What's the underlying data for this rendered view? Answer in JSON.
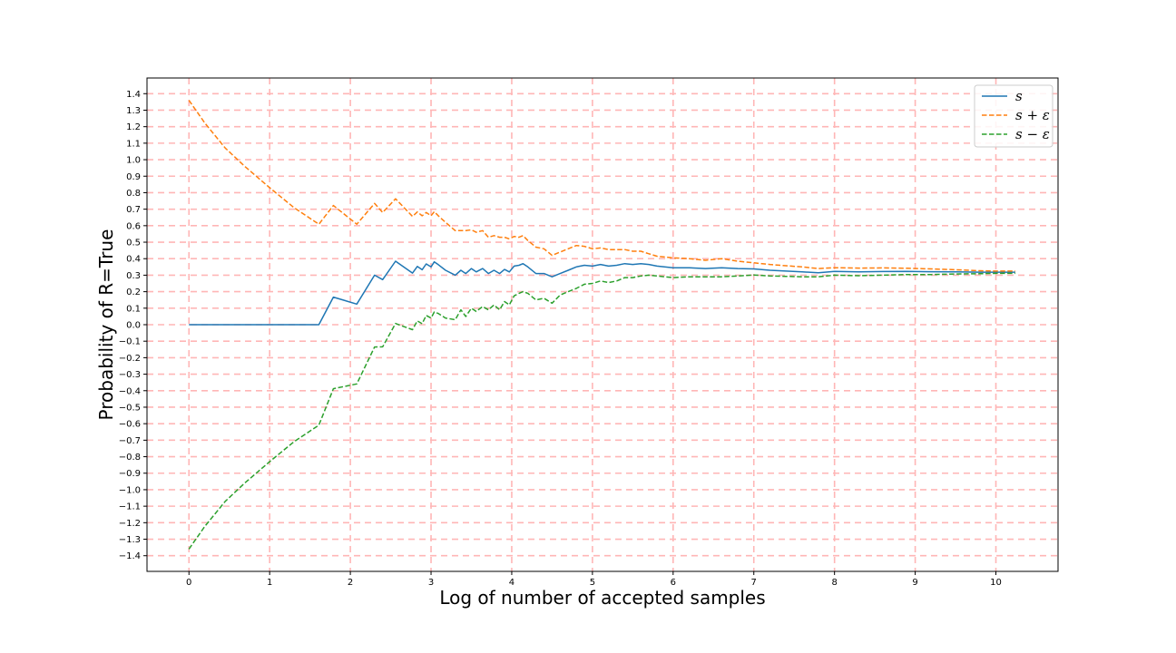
{
  "chart_data": {
    "type": "line",
    "xlabel": "Log of number of accepted samples",
    "ylabel": "Probability of R=True",
    "xlim": [
      -0.52,
      10.77
    ],
    "ylim": [
      -1.495,
      1.495
    ],
    "xticks": [
      0,
      1,
      2,
      3,
      4,
      5,
      6,
      7,
      8,
      9,
      10
    ],
    "xtick_labels": [
      "0",
      "1",
      "2",
      "3",
      "4",
      "5",
      "6",
      "7",
      "8",
      "9",
      "10"
    ],
    "yticks": [
      1.4,
      1.3,
      1.2,
      1.1,
      1.0,
      0.9,
      0.8,
      0.7,
      0.6,
      0.5,
      0.4,
      0.3,
      0.2,
      0.1,
      0.0,
      -0.1,
      -0.2,
      -0.3,
      -0.4,
      -0.5,
      -0.6,
      -0.7,
      -0.8,
      -0.9,
      -1.0,
      -1.1,
      -1.2,
      -1.3,
      -1.4
    ],
    "ytick_labels": [
      "1.4",
      "1.3",
      "1.2",
      "1.1",
      "1.0",
      "0.9",
      "0.8",
      "0.7",
      "0.6",
      "0.5",
      "0.4",
      "0.3",
      "0.2",
      "0.1",
      "0.0",
      "−0.1",
      "−0.2",
      "−0.3",
      "−0.4",
      "−0.5",
      "−0.6",
      "−0.7",
      "−0.8",
      "−0.9",
      "−1.0",
      "−1.1",
      "−1.2",
      "−1.3",
      "−1.4"
    ],
    "grid": true,
    "grid_color": "#ffb6b6",
    "legend_position": "upper right",
    "series": [
      {
        "name": "s",
        "color": "#1f77b4",
        "dash": "solid",
        "x": [
          0,
          1.61,
          1.79,
          2.08,
          2.3,
          2.4,
          2.56,
          2.77,
          2.83,
          2.89,
          2.94,
          3.0,
          3.04,
          3.09,
          3.18,
          3.3,
          3.37,
          3.43,
          3.5,
          3.56,
          3.64,
          3.71,
          3.78,
          3.85,
          3.91,
          3.97,
          4.03,
          4.09,
          4.14,
          4.2,
          4.3,
          4.4,
          4.5,
          4.6,
          4.7,
          4.8,
          4.9,
          5.0,
          5.1,
          5.2,
          5.3,
          5.4,
          5.5,
          5.6,
          5.7,
          5.8,
          6.0,
          6.2,
          6.4,
          6.6,
          6.8,
          7.0,
          7.2,
          7.4,
          7.6,
          7.8,
          8.0,
          8.3,
          8.6,
          8.9,
          9.2,
          9.5,
          9.8,
          10.0,
          10.24
        ],
        "y": [
          0.0,
          0.0,
          0.167,
          0.125,
          0.3,
          0.273,
          0.385,
          0.313,
          0.353,
          0.333,
          0.368,
          0.35,
          0.381,
          0.364,
          0.33,
          0.3,
          0.33,
          0.31,
          0.34,
          0.32,
          0.34,
          0.31,
          0.33,
          0.31,
          0.335,
          0.32,
          0.355,
          0.36,
          0.37,
          0.35,
          0.31,
          0.31,
          0.29,
          0.31,
          0.33,
          0.35,
          0.36,
          0.355,
          0.365,
          0.355,
          0.36,
          0.37,
          0.365,
          0.37,
          0.365,
          0.355,
          0.345,
          0.345,
          0.34,
          0.345,
          0.34,
          0.338,
          0.33,
          0.325,
          0.32,
          0.315,
          0.323,
          0.32,
          0.322,
          0.323,
          0.321,
          0.32,
          0.318,
          0.318,
          0.318
        ]
      },
      {
        "name": "s + ε",
        "color": "#ff7f0e",
        "dash": "dashed",
        "x": [
          0,
          0.2,
          0.45,
          0.69,
          1.0,
          1.3,
          1.61,
          1.79,
          2.08,
          2.3,
          2.4,
          2.56,
          2.77,
          2.83,
          2.89,
          2.94,
          3.0,
          3.04,
          3.09,
          3.18,
          3.3,
          3.37,
          3.43,
          3.5,
          3.56,
          3.64,
          3.71,
          3.78,
          3.85,
          3.91,
          3.97,
          4.03,
          4.09,
          4.14,
          4.2,
          4.3,
          4.4,
          4.5,
          4.6,
          4.7,
          4.8,
          4.9,
          5.0,
          5.1,
          5.2,
          5.3,
          5.4,
          5.5,
          5.6,
          5.7,
          5.8,
          6.0,
          6.2,
          6.4,
          6.6,
          6.8,
          7.0,
          7.2,
          7.4,
          7.6,
          7.8,
          8.0,
          8.3,
          8.6,
          8.9,
          9.2,
          9.5,
          9.8,
          10.0,
          10.24
        ],
        "y": [
          1.36,
          1.22,
          1.07,
          0.96,
          0.83,
          0.71,
          0.609,
          0.722,
          0.609,
          0.735,
          0.68,
          0.763,
          0.656,
          0.683,
          0.66,
          0.68,
          0.66,
          0.685,
          0.66,
          0.62,
          0.57,
          0.57,
          0.57,
          0.575,
          0.56,
          0.57,
          0.53,
          0.54,
          0.53,
          0.53,
          0.52,
          0.535,
          0.53,
          0.54,
          0.51,
          0.47,
          0.46,
          0.42,
          0.44,
          0.46,
          0.48,
          0.475,
          0.46,
          0.465,
          0.455,
          0.455,
          0.455,
          0.445,
          0.445,
          0.43,
          0.415,
          0.405,
          0.4,
          0.39,
          0.4,
          0.385,
          0.375,
          0.365,
          0.357,
          0.35,
          0.34,
          0.345,
          0.343,
          0.344,
          0.342,
          0.338,
          0.333,
          0.327,
          0.325,
          0.325
        ]
      },
      {
        "name": "s − ε",
        "color": "#2ca02c",
        "dash": "dashed",
        "x": [
          0,
          0.2,
          0.45,
          0.69,
          1.0,
          1.3,
          1.61,
          1.79,
          2.08,
          2.3,
          2.4,
          2.56,
          2.77,
          2.83,
          2.89,
          2.94,
          3.0,
          3.04,
          3.09,
          3.18,
          3.3,
          3.37,
          3.43,
          3.5,
          3.56,
          3.64,
          3.71,
          3.78,
          3.85,
          3.91,
          3.97,
          4.03,
          4.09,
          4.14,
          4.2,
          4.3,
          4.4,
          4.5,
          4.6,
          4.7,
          4.8,
          4.9,
          5.0,
          5.1,
          5.2,
          5.3,
          5.4,
          5.5,
          5.6,
          5.7,
          5.8,
          6.0,
          6.2,
          6.4,
          6.6,
          6.8,
          7.0,
          7.2,
          7.4,
          7.6,
          7.8,
          8.0,
          8.3,
          8.6,
          8.9,
          9.2,
          9.5,
          9.8,
          10.0,
          10.24
        ],
        "y": [
          -1.36,
          -1.22,
          -1.07,
          -0.96,
          -0.83,
          -0.71,
          -0.609,
          -0.388,
          -0.359,
          -0.135,
          -0.134,
          0.007,
          -0.03,
          0.023,
          0.006,
          0.056,
          0.04,
          0.077,
          0.068,
          0.04,
          0.03,
          0.09,
          0.05,
          0.1,
          0.08,
          0.11,
          0.09,
          0.12,
          0.09,
          0.14,
          0.12,
          0.175,
          0.19,
          0.2,
          0.19,
          0.15,
          0.16,
          0.13,
          0.18,
          0.2,
          0.22,
          0.245,
          0.25,
          0.265,
          0.255,
          0.265,
          0.285,
          0.285,
          0.295,
          0.3,
          0.295,
          0.285,
          0.29,
          0.29,
          0.29,
          0.295,
          0.301,
          0.295,
          0.293,
          0.29,
          0.29,
          0.3,
          0.297,
          0.3,
          0.304,
          0.304,
          0.307,
          0.309,
          0.311,
          0.311
        ]
      }
    ]
  }
}
